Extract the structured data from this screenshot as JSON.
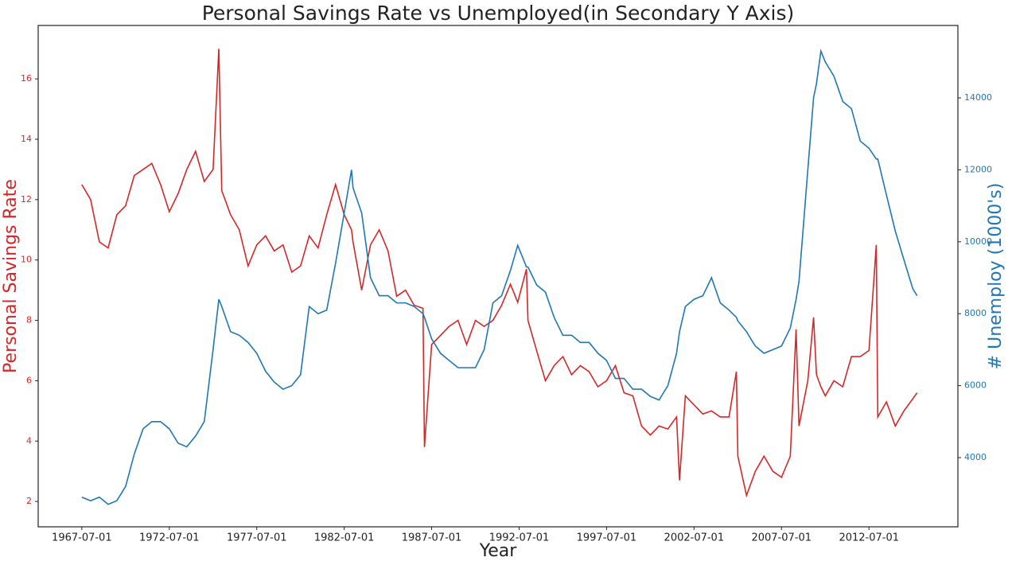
{
  "chart_data": {
    "type": "line",
    "title": "Personal Savings Rate vs Unemployed(in Secondary Y Axis)",
    "xlabel": "Year",
    "ylabel": "Personal Savings Rate",
    "y2label": "# Unemploy (1000's)",
    "x": [
      "1967-07-01",
      "1968-01-01",
      "1968-07-01",
      "1969-01-01",
      "1969-07-01",
      "1970-01-01",
      "1970-07-01",
      "1971-01-01",
      "1971-07-01",
      "1972-01-01",
      "1972-07-01",
      "1973-01-01",
      "1973-07-01",
      "1974-01-01",
      "1974-07-01",
      "1975-01-01",
      "1975-05-01",
      "1975-07-01",
      "1976-01-01",
      "1976-07-01",
      "1977-01-01",
      "1977-07-01",
      "1978-01-01",
      "1978-07-01",
      "1979-01-01",
      "1979-07-01",
      "1980-01-01",
      "1980-07-01",
      "1981-01-01",
      "1981-07-01",
      "1982-01-01",
      "1982-07-01",
      "1982-12-01",
      "1983-01-01",
      "1983-07-01",
      "1984-01-01",
      "1984-07-01",
      "1985-01-01",
      "1985-07-01",
      "1986-01-01",
      "1986-07-01",
      "1987-01-01",
      "1987-02-01",
      "1987-07-01",
      "1988-01-01",
      "1988-07-01",
      "1989-01-01",
      "1989-07-01",
      "1990-01-01",
      "1990-07-01",
      "1991-01-01",
      "1991-07-01",
      "1992-01-01",
      "1992-06-01",
      "1992-12-01",
      "1993-01-01",
      "1993-07-01",
      "1994-01-01",
      "1994-07-01",
      "1995-01-01",
      "1995-07-01",
      "1996-01-01",
      "1996-07-01",
      "1997-01-01",
      "1997-07-01",
      "1998-01-01",
      "1998-07-01",
      "1999-01-01",
      "1999-07-01",
      "2000-01-01",
      "2000-07-01",
      "2001-01-01",
      "2001-07-01",
      "2001-09-01",
      "2002-01-01",
      "2002-07-01",
      "2003-01-01",
      "2003-07-01",
      "2004-01-01",
      "2004-07-01",
      "2004-12-01",
      "2005-01-01",
      "2005-07-01",
      "2006-01-01",
      "2006-07-01",
      "2007-01-01",
      "2007-07-01",
      "2008-01-01",
      "2008-05-01",
      "2008-07-01",
      "2009-01-01",
      "2009-05-01",
      "2009-07-01",
      "2009-10-01",
      "2010-01-01",
      "2010-07-01",
      "2011-01-01",
      "2011-07-01",
      "2012-01-01",
      "2012-07-01",
      "2012-12-01",
      "2013-01-01",
      "2013-07-01",
      "2014-01-01",
      "2014-07-01",
      "2015-01-01",
      "2015-04-01"
    ],
    "series": [
      {
        "color": "#d62728",
        "axis": "y",
        "values": [
          12.5,
          12.0,
          10.6,
          10.4,
          11.5,
          11.8,
          12.8,
          13.0,
          13.2,
          12.5,
          11.6,
          12.2,
          13.0,
          13.6,
          12.6,
          13.0,
          17.0,
          12.3,
          11.5,
          11.0,
          9.8,
          10.5,
          10.8,
          10.3,
          10.5,
          9.6,
          9.8,
          10.8,
          10.4,
          11.5,
          12.5,
          11.5,
          11.0,
          10.6,
          9.0,
          10.5,
          11.0,
          10.3,
          8.8,
          9.0,
          8.5,
          8.4,
          3.8,
          7.2,
          7.5,
          7.8,
          8.0,
          7.2,
          8.0,
          7.8,
          8.0,
          8.5,
          9.2,
          8.6,
          9.7,
          8.0,
          7.0,
          6.0,
          6.5,
          6.8,
          6.2,
          6.5,
          6.3,
          5.8,
          6.0,
          6.5,
          5.6,
          5.5,
          4.5,
          4.2,
          4.5,
          4.4,
          4.8,
          2.7,
          5.5,
          5.2,
          4.9,
          5.0,
          4.8,
          4.8,
          6.3,
          3.5,
          2.2,
          3.0,
          3.5,
          3.0,
          2.8,
          3.5,
          7.7,
          4.5,
          6.0,
          8.1,
          6.2,
          5.8,
          5.5,
          6.0,
          5.8,
          6.8,
          6.8,
          7.0,
          10.5,
          4.8,
          5.3,
          4.5,
          5.0,
          5.4,
          5.6
        ]
      },
      {
        "color": "#1f77b4",
        "axis": "y2",
        "values": [
          2900,
          2800,
          2900,
          2700,
          2800,
          3200,
          4100,
          4800,
          5000,
          5000,
          4800,
          4400,
          4300,
          4600,
          5000,
          7000,
          8400,
          8200,
          7500,
          7400,
          7200,
          6900,
          6400,
          6100,
          5900,
          6000,
          6300,
          8200,
          8000,
          8100,
          9400,
          10800,
          12000,
          11500,
          10800,
          9000,
          8500,
          8500,
          8300,
          8300,
          8200,
          8000,
          7900,
          7300,
          6900,
          6700,
          6500,
          6500,
          6500,
          7000,
          8300,
          8500,
          9200,
          9900,
          9300,
          9300,
          8800,
          8600,
          7900,
          7400,
          7400,
          7200,
          7200,
          6900,
          6700,
          6200,
          6200,
          5900,
          5900,
          5700,
          5600,
          6000,
          6900,
          7500,
          8200,
          8400,
          8500,
          9000,
          8300,
          8100,
          7900,
          7800,
          7500,
          7100,
          6900,
          7000,
          7100,
          7600,
          8400,
          8900,
          12000,
          14000,
          14400,
          15300,
          15000,
          14600,
          13900,
          13700,
          12800,
          12600,
          12300,
          12300,
          11300,
          10300,
          9500,
          8700,
          8500
        ]
      }
    ],
    "xlim": [
      "1965-01-01",
      "2017-08-01"
    ],
    "xticks": [
      "1967-07-01",
      "1972-07-01",
      "1977-07-01",
      "1982-07-01",
      "1987-07-01",
      "1992-07-01",
      "1997-07-01",
      "2002-07-01",
      "2007-07-01",
      "2012-07-01"
    ],
    "ylim": [
      1.16,
      17.77
    ],
    "yticks": [
      2,
      4,
      6,
      8,
      10,
      12,
      14,
      16
    ],
    "y2lim": [
      2075,
      16013
    ],
    "y2ticks": [
      4000,
      6000,
      8000,
      10000,
      12000,
      14000
    ]
  }
}
